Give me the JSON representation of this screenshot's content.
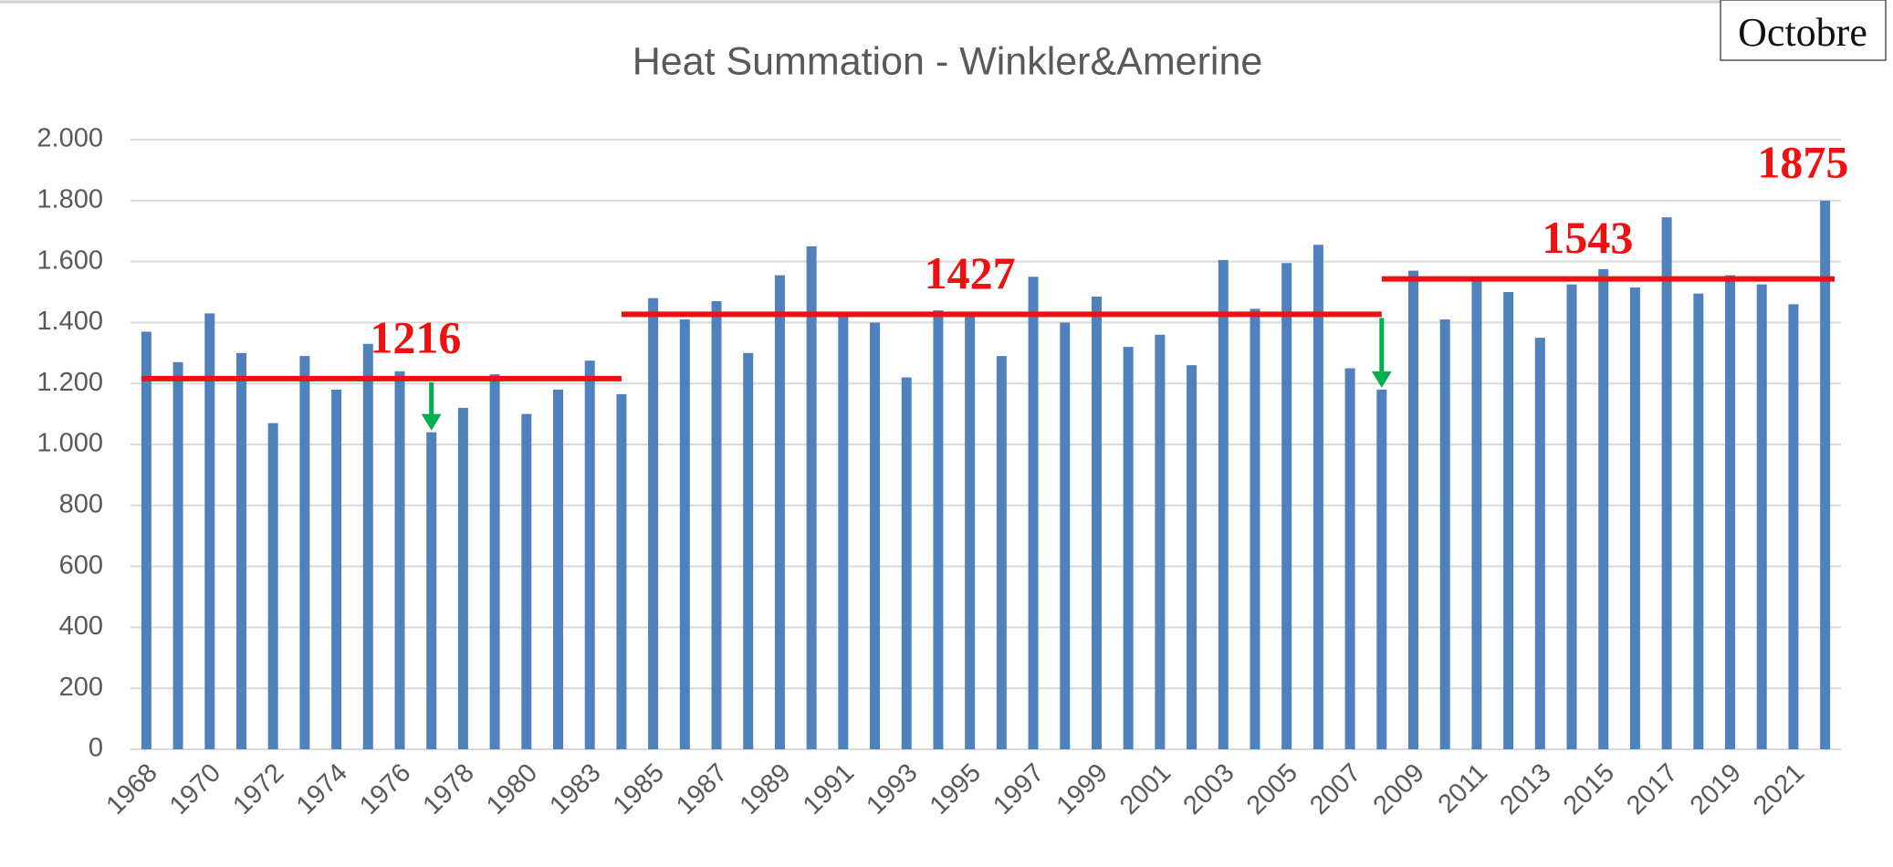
{
  "chart_data": {
    "type": "bar",
    "title": "Heat Summation - Winkler&Amerine",
    "categories": [
      "1968",
      null,
      "1970",
      null,
      "1972",
      null,
      "1974",
      null,
      "1976",
      null,
      "1978",
      null,
      "1980",
      null,
      "1983",
      null,
      "1985",
      null,
      "1987",
      null,
      "1989",
      null,
      "1991",
      null,
      "1993",
      null,
      "1995",
      null,
      "1997",
      null,
      "1999",
      null,
      "2001",
      null,
      "2003",
      null,
      "2005",
      null,
      "2007",
      null,
      "2009",
      null,
      "2011",
      null,
      "2013",
      null,
      "2015",
      null,
      "2017",
      null,
      "2019",
      null,
      "2021",
      null
    ],
    "values": [
      1370,
      1270,
      1430,
      1300,
      1070,
      1290,
      1180,
      1330,
      1240,
      1040,
      1120,
      1230,
      1100,
      1180,
      1275,
      1165,
      1480,
      1410,
      1470,
      1300,
      1555,
      1650,
      1430,
      1400,
      1220,
      1440,
      1420,
      1290,
      1550,
      1400,
      1485,
      1320,
      1360,
      1260,
      1605,
      1445,
      1595,
      1655,
      1250,
      1180,
      1570,
      1410,
      1545,
      1500,
      1350,
      1525,
      1575,
      1515,
      1745,
      1495,
      1555,
      1525,
      1460,
      1800
    ],
    "color": "#4f81bd",
    "ylim": [
      0,
      2000
    ],
    "yticks": [
      0,
      {
        "value": 200,
        "label": "200"
      },
      {
        "value": 400,
        "label": "400"
      },
      {
        "value": 600,
        "label": "600"
      },
      {
        "value": 800,
        "label": "800"
      },
      {
        "value": 1000,
        "label": "1.000"
      },
      {
        "value": 1200,
        "label": "1.200"
      },
      {
        "value": 1400,
        "label": "1.400"
      },
      {
        "value": 1600,
        "label": "1.600"
      },
      {
        "value": 1800,
        "label": "1.800"
      },
      {
        "value": 2000,
        "label": "2.000"
      }
    ],
    "grid": true,
    "averages": [
      1216,
      1427,
      1543
    ],
    "peak": 1875,
    "note": "Octobre"
  }
}
